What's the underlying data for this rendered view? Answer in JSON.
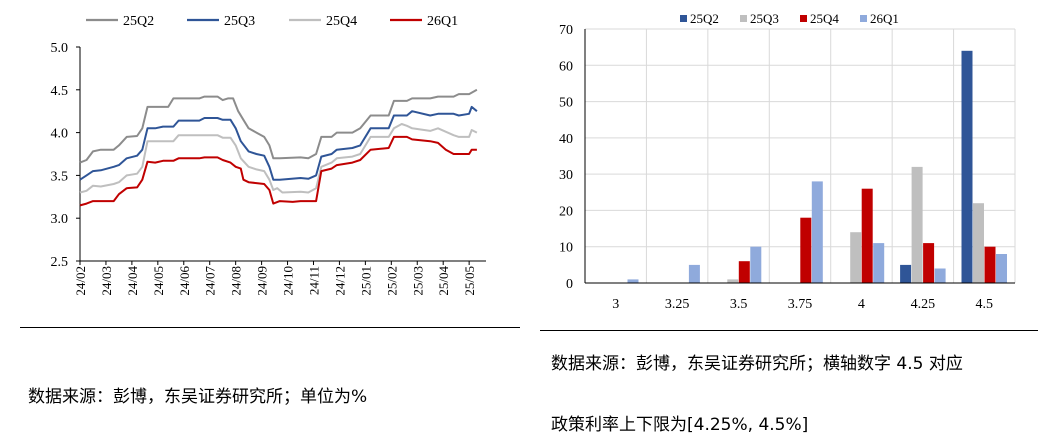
{
  "line_chart": {
    "legend": [
      "25Q2",
      "25Q3",
      "25Q4",
      "26Q1"
    ],
    "colors": [
      "#8C8C8C",
      "#2F5597",
      "#BFBFBF",
      "#C00000"
    ]
  },
  "bar_chart": {
    "legend": [
      "25Q2",
      "25Q3",
      "25Q4",
      "26Q1"
    ],
    "colors": [
      "#2F5597",
      "#BFBFBF",
      "#C00000",
      "#8FAADC"
    ]
  },
  "notes": {
    "left_source": "数据来源：彭博，东吴证券研究所；单位为%",
    "right_source_line1": "数据来源：彭博，东吴证券研究所；横轴数字 4.5 对应",
    "right_source_line2": "政策利率上下限为[4.25%, 4.5%]"
  },
  "chart_data": [
    {
      "type": "line",
      "x_ticks": [
        "24/02",
        "24/03",
        "24/04",
        "24/05",
        "24/06",
        "24/07",
        "24/08",
        "24/09",
        "24/10",
        "24/11",
        "24/12",
        "25/01",
        "25/02",
        "25/03",
        "25/04",
        "25/05"
      ],
      "x_start": "24/02",
      "x_end": "25/05",
      "ylim": [
        2.5,
        5.0
      ],
      "y_ticks": [
        "2.5",
        "3.0",
        "3.5",
        "4.0",
        "4.5",
        "5.0"
      ],
      "legend_position": "top",
      "series": [
        {
          "name": "25Q2",
          "points": [
            [
              0,
              3.65
            ],
            [
              0.25,
              3.68
            ],
            [
              0.5,
              3.78
            ],
            [
              0.8,
              3.8
            ],
            [
              1.3,
              3.8
            ],
            [
              1.5,
              3.85
            ],
            [
              1.8,
              3.95
            ],
            [
              2.2,
              3.96
            ],
            [
              2.4,
              4.05
            ],
            [
              2.6,
              4.3
            ],
            [
              3.4,
              4.3
            ],
            [
              3.6,
              4.4
            ],
            [
              4.6,
              4.4
            ],
            [
              4.8,
              4.42
            ],
            [
              5.3,
              4.42
            ],
            [
              5.5,
              4.38
            ],
            [
              5.7,
              4.4
            ],
            [
              5.9,
              4.4
            ],
            [
              6.1,
              4.25
            ],
            [
              6.3,
              4.15
            ],
            [
              6.5,
              4.05
            ],
            [
              6.8,
              4.0
            ],
            [
              7.1,
              3.95
            ],
            [
              7.3,
              3.85
            ],
            [
              7.45,
              3.7
            ],
            [
              7.7,
              3.7
            ],
            [
              8.5,
              3.71
            ],
            [
              8.8,
              3.7
            ],
            [
              9.1,
              3.75
            ],
            [
              9.3,
              3.95
            ],
            [
              9.7,
              3.95
            ],
            [
              9.9,
              4.0
            ],
            [
              10.5,
              4.0
            ],
            [
              10.8,
              4.05
            ],
            [
              11.2,
              4.2
            ],
            [
              11.9,
              4.2
            ],
            [
              12.1,
              4.37
            ],
            [
              12.6,
              4.37
            ],
            [
              12.8,
              4.4
            ],
            [
              13.5,
              4.4
            ],
            [
              13.8,
              4.42
            ],
            [
              14.4,
              4.42
            ],
            [
              14.6,
              4.45
            ],
            [
              15.0,
              4.45
            ],
            [
              15.3,
              4.5
            ]
          ]
        },
        {
          "name": "25Q3",
          "points": [
            [
              0,
              3.45
            ],
            [
              0.25,
              3.5
            ],
            [
              0.5,
              3.55
            ],
            [
              0.8,
              3.56
            ],
            [
              1.3,
              3.6
            ],
            [
              1.5,
              3.62
            ],
            [
              1.8,
              3.7
            ],
            [
              2.2,
              3.73
            ],
            [
              2.4,
              3.8
            ],
            [
              2.6,
              4.05
            ],
            [
              2.9,
              4.05
            ],
            [
              3.2,
              4.07
            ],
            [
              3.6,
              4.07
            ],
            [
              3.8,
              4.14
            ],
            [
              4.6,
              4.14
            ],
            [
              4.8,
              4.17
            ],
            [
              5.3,
              4.17
            ],
            [
              5.5,
              4.15
            ],
            [
              5.8,
              4.15
            ],
            [
              6.0,
              4.05
            ],
            [
              6.2,
              3.9
            ],
            [
              6.5,
              3.78
            ],
            [
              6.8,
              3.75
            ],
            [
              7.1,
              3.73
            ],
            [
              7.3,
              3.6
            ],
            [
              7.45,
              3.45
            ],
            [
              7.7,
              3.45
            ],
            [
              8.5,
              3.47
            ],
            [
              8.8,
              3.46
            ],
            [
              9.1,
              3.5
            ],
            [
              9.3,
              3.72
            ],
            [
              9.7,
              3.75
            ],
            [
              9.9,
              3.8
            ],
            [
              10.5,
              3.82
            ],
            [
              10.8,
              3.85
            ],
            [
              11.2,
              4.05
            ],
            [
              11.9,
              4.05
            ],
            [
              12.1,
              4.2
            ],
            [
              12.6,
              4.2
            ],
            [
              12.8,
              4.25
            ],
            [
              13.5,
              4.2
            ],
            [
              13.8,
              4.22
            ],
            [
              14.4,
              4.22
            ],
            [
              14.6,
              4.2
            ],
            [
              15.0,
              4.22
            ],
            [
              15.1,
              4.3
            ],
            [
              15.3,
              4.25
            ]
          ]
        },
        {
          "name": "25Q4",
          "points": [
            [
              0,
              3.3
            ],
            [
              0.25,
              3.32
            ],
            [
              0.5,
              3.38
            ],
            [
              0.8,
              3.37
            ],
            [
              1.3,
              3.4
            ],
            [
              1.5,
              3.42
            ],
            [
              1.8,
              3.5
            ],
            [
              2.2,
              3.52
            ],
            [
              2.4,
              3.6
            ],
            [
              2.6,
              3.9
            ],
            [
              2.9,
              3.9
            ],
            [
              3.2,
              3.9
            ],
            [
              3.6,
              3.9
            ],
            [
              3.8,
              3.97
            ],
            [
              4.6,
              3.97
            ],
            [
              4.8,
              3.97
            ],
            [
              5.3,
              3.97
            ],
            [
              5.5,
              3.94
            ],
            [
              5.8,
              3.94
            ],
            [
              6.0,
              3.85
            ],
            [
              6.2,
              3.7
            ],
            [
              6.5,
              3.6
            ],
            [
              6.8,
              3.57
            ],
            [
              7.1,
              3.55
            ],
            [
              7.3,
              3.45
            ],
            [
              7.45,
              3.33
            ],
            [
              7.6,
              3.35
            ],
            [
              7.8,
              3.3
            ],
            [
              8.5,
              3.31
            ],
            [
              8.8,
              3.3
            ],
            [
              9.1,
              3.35
            ],
            [
              9.3,
              3.6
            ],
            [
              9.7,
              3.65
            ],
            [
              9.9,
              3.7
            ],
            [
              10.5,
              3.72
            ],
            [
              10.8,
              3.75
            ],
            [
              11.2,
              3.95
            ],
            [
              11.9,
              3.95
            ],
            [
              12.1,
              4.05
            ],
            [
              12.4,
              4.1
            ],
            [
              12.6,
              4.08
            ],
            [
              12.8,
              4.05
            ],
            [
              13.5,
              4.02
            ],
            [
              13.8,
              4.05
            ],
            [
              14.4,
              3.97
            ],
            [
              14.6,
              3.95
            ],
            [
              15.0,
              3.95
            ],
            [
              15.1,
              4.03
            ],
            [
              15.3,
              4.0
            ]
          ]
        },
        {
          "name": "26Q1",
          "points": [
            [
              0,
              3.15
            ],
            [
              0.25,
              3.17
            ],
            [
              0.5,
              3.2
            ],
            [
              0.8,
              3.2
            ],
            [
              1.3,
              3.2
            ],
            [
              1.5,
              3.28
            ],
            [
              1.8,
              3.35
            ],
            [
              2.2,
              3.36
            ],
            [
              2.4,
              3.45
            ],
            [
              2.6,
              3.66
            ],
            [
              2.9,
              3.65
            ],
            [
              3.2,
              3.67
            ],
            [
              3.6,
              3.67
            ],
            [
              3.8,
              3.7
            ],
            [
              4.6,
              3.7
            ],
            [
              4.8,
              3.71
            ],
            [
              5.3,
              3.71
            ],
            [
              5.5,
              3.68
            ],
            [
              5.8,
              3.65
            ],
            [
              6.0,
              3.6
            ],
            [
              6.2,
              3.58
            ],
            [
              6.3,
              3.45
            ],
            [
              6.5,
              3.42
            ],
            [
              6.8,
              3.41
            ],
            [
              7.1,
              3.4
            ],
            [
              7.3,
              3.33
            ],
            [
              7.45,
              3.17
            ],
            [
              7.7,
              3.2
            ],
            [
              8.2,
              3.19
            ],
            [
              8.5,
              3.2
            ],
            [
              8.8,
              3.2
            ],
            [
              9.1,
              3.2
            ],
            [
              9.3,
              3.55
            ],
            [
              9.7,
              3.58
            ],
            [
              9.9,
              3.62
            ],
            [
              10.5,
              3.65
            ],
            [
              10.8,
              3.68
            ],
            [
              11.2,
              3.8
            ],
            [
              11.9,
              3.82
            ],
            [
              12.1,
              3.95
            ],
            [
              12.6,
              3.95
            ],
            [
              12.8,
              3.92
            ],
            [
              13.5,
              3.9
            ],
            [
              13.8,
              3.88
            ],
            [
              14.1,
              3.8
            ],
            [
              14.4,
              3.75
            ],
            [
              14.6,
              3.75
            ],
            [
              15.0,
              3.75
            ],
            [
              15.1,
              3.8
            ],
            [
              15.3,
              3.8
            ]
          ]
        }
      ]
    },
    {
      "type": "bar",
      "categories": [
        "3",
        "3.25",
        "3.5",
        "3.75",
        "4",
        "4.25",
        "4.5"
      ],
      "ylim": [
        0,
        70
      ],
      "y_ticks": [
        "0",
        "10",
        "20",
        "30",
        "40",
        "50",
        "60",
        "70"
      ],
      "grid": true,
      "legend_position": "top",
      "series": [
        {
          "name": "25Q2",
          "values": [
            0,
            0,
            0,
            0,
            0,
            5,
            64
          ]
        },
        {
          "name": "25Q3",
          "values": [
            0,
            0,
            1,
            0,
            14,
            32,
            22
          ]
        },
        {
          "name": "25Q4",
          "values": [
            0,
            0,
            6,
            18,
            26,
            11,
            10
          ]
        },
        {
          "name": "26Q1",
          "values": [
            1,
            5,
            10,
            28,
            11,
            4,
            8
          ]
        }
      ]
    }
  ]
}
